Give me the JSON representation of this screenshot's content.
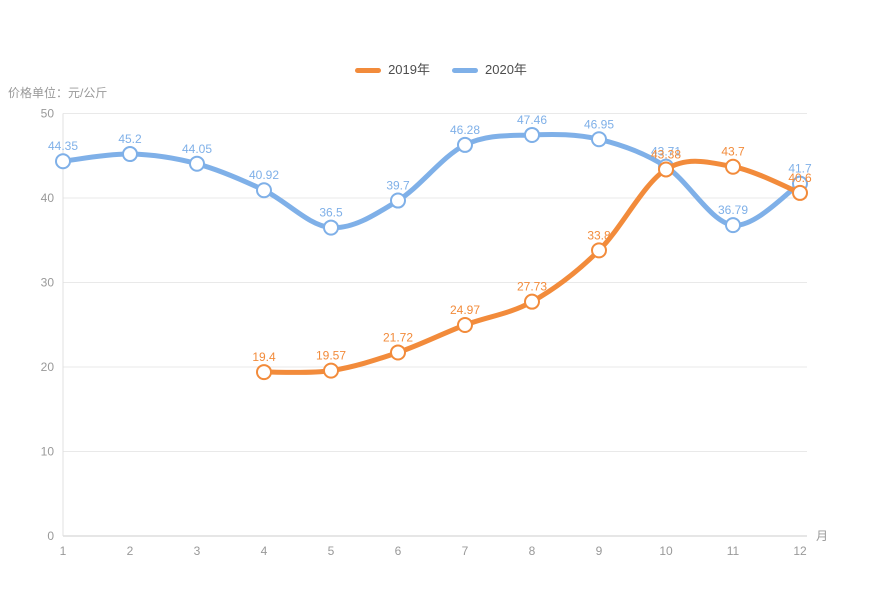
{
  "chart_data": {
    "type": "line",
    "title": "",
    "unit_label": "价格单位：元/公斤",
    "x_axis_name": "月",
    "categories": [
      "1",
      "2",
      "3",
      "4",
      "5",
      "6",
      "7",
      "8",
      "9",
      "10",
      "11",
      "12"
    ],
    "ylim": [
      0,
      50
    ],
    "yticks": [
      0,
      10,
      20,
      30,
      40,
      50
    ],
    "grid": true,
    "smooth": true,
    "legend_position": "top-center",
    "axis_text_color": "#999999",
    "gridline_color": "#e9e9e9",
    "axis_line_color": "#cccccc",
    "series": [
      {
        "name": "2019年",
        "color": "#f28b3b",
        "values": [
          null,
          null,
          null,
          19.4,
          19.57,
          21.72,
          24.97,
          27.73,
          33.8,
          43.38,
          43.7,
          40.6
        ]
      },
      {
        "name": "2020年",
        "color": "#7fb0e8",
        "values": [
          44.35,
          45.2,
          44.05,
          40.92,
          36.5,
          39.7,
          46.28,
          47.46,
          46.95,
          43.71,
          36.79,
          41.7
        ]
      }
    ]
  }
}
